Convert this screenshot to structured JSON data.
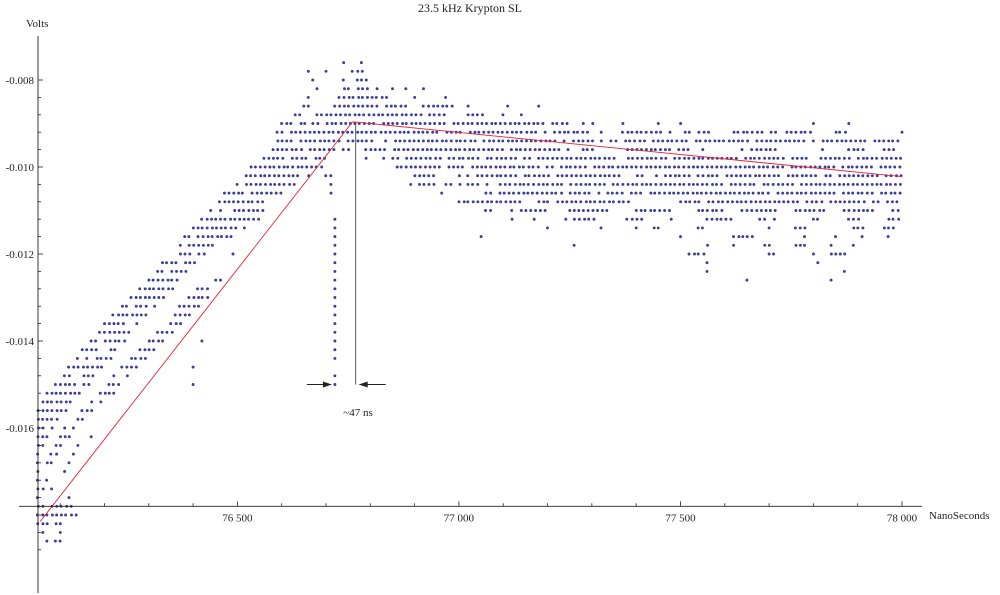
{
  "chart_data": {
    "type": "scatter",
    "title": "23.5 kHz Krypton SL",
    "xlabel": "NanoSeconds",
    "ylabel": "Volts",
    "xlim": [
      76050,
      78060
    ],
    "ylim": [
      -0.0189,
      -0.0076
    ],
    "x_axis_at_y": -0.0178,
    "y_axis_at_x": 76050,
    "x_ticks": [
      76500,
      77000,
      77500,
      78000
    ],
    "x_tick_labels": [
      "76 500",
      "77 000",
      "77 500",
      "78 000"
    ],
    "y_ticks": [
      -0.008,
      -0.01,
      -0.012,
      -0.014,
      -0.016
    ],
    "y_tick_labels": [
      "-0.008",
      "-0.010",
      "-0.012",
      "-0.014",
      "-0.016"
    ],
    "grid": false,
    "marker_color": "#3a3d98",
    "fit_color": "#e8202e",
    "level_step": 0.0002,
    "point_bands": [
      {
        "y": -0.0076,
        "segments": [
          [
            76740,
            76740
          ],
          [
            76780,
            76780
          ]
        ]
      },
      {
        "y": -0.0078,
        "segments": [
          [
            76660,
            76660
          ],
          [
            76700,
            76700
          ],
          [
            76760,
            76790
          ]
        ]
      },
      {
        "y": -0.008,
        "segments": [
          [
            76670,
            76670
          ],
          [
            76740,
            76750
          ],
          [
            76770,
            76800
          ]
        ]
      },
      {
        "y": -0.0082,
        "segments": [
          [
            76680,
            76690
          ],
          [
            76730,
            76820
          ],
          [
            76850,
            76850
          ],
          [
            76880,
            76880
          ],
          [
            76920,
            76920
          ]
        ]
      },
      {
        "y": -0.0084,
        "segments": [
          [
            76660,
            76660
          ],
          [
            76700,
            76710
          ],
          [
            76730,
            76840
          ],
          [
            76900,
            76910
          ],
          [
            76970,
            76970
          ]
        ]
      },
      {
        "y": -0.0086,
        "segments": [
          [
            76650,
            76690
          ],
          [
            76720,
            76870
          ],
          [
            76880,
            76890
          ],
          [
            76910,
            76990
          ],
          [
            77020,
            77030
          ],
          [
            77110,
            77110
          ],
          [
            77180,
            77180
          ]
        ]
      },
      {
        "y": -0.0088,
        "segments": [
          [
            76630,
            76650
          ],
          [
            76680,
            76990
          ],
          [
            77020,
            77060
          ],
          [
            77100,
            77110
          ],
          [
            77140,
            77150
          ]
        ]
      },
      {
        "y": -0.009,
        "segments": [
          [
            76600,
            76660
          ],
          [
            76670,
            77250
          ],
          [
            77280,
            77310
          ],
          [
            77370,
            77370
          ],
          [
            77450,
            77450
          ],
          [
            77500,
            77510
          ],
          [
            77800,
            77800
          ],
          [
            77880,
            77880
          ]
        ]
      },
      {
        "y": -0.0092,
        "segments": [
          [
            76590,
            77300
          ],
          [
            77320,
            77330
          ],
          [
            77370,
            77480
          ],
          [
            77510,
            77570
          ],
          [
            77620,
            77720
          ],
          [
            77740,
            77800
          ],
          [
            77850,
            77880
          ],
          [
            78000,
            78000
          ]
        ]
      },
      {
        "y": -0.0094,
        "segments": [
          [
            76580,
            78000
          ]
        ]
      },
      {
        "y": -0.0096,
        "segments": [
          [
            76580,
            76720
          ],
          [
            76740,
            76760
          ],
          [
            76790,
            77250
          ],
          [
            77280,
            77310
          ],
          [
            77380,
            77520
          ],
          [
            77550,
            77560
          ],
          [
            77640,
            77720
          ],
          [
            77820,
            77830
          ],
          [
            77880,
            77920
          ],
          [
            77960,
            78000
          ]
        ]
      },
      {
        "y": -0.0098,
        "segments": [
          [
            76560,
            76700
          ],
          [
            76790,
            76800
          ],
          [
            76830,
            78000
          ]
        ]
      },
      {
        "y": -0.01,
        "segments": [
          [
            76530,
            76690
          ],
          [
            76860,
            78000
          ]
        ]
      },
      {
        "y": -0.0102,
        "segments": [
          [
            76520,
            76640
          ],
          [
            76660,
            76670
          ],
          [
            76700,
            76720
          ],
          [
            76900,
            76950
          ],
          [
            77000,
            78000
          ]
        ]
      },
      {
        "y": -0.0104,
        "segments": [
          [
            76500,
            76630
          ],
          [
            76710,
            76720
          ],
          [
            76890,
            76950
          ],
          [
            76970,
            77010
          ],
          [
            77020,
            78000
          ]
        ]
      },
      {
        "y": -0.0106,
        "segments": [
          [
            76470,
            76610
          ],
          [
            76700,
            76720
          ],
          [
            76960,
            76970
          ],
          [
            77050,
            77700
          ],
          [
            77720,
            78000
          ]
        ]
      },
      {
        "y": -0.0108,
        "segments": [
          [
            76460,
            76570
          ],
          [
            77000,
            77140
          ],
          [
            77180,
            77400
          ],
          [
            77500,
            78000
          ]
        ]
      },
      {
        "y": -0.011,
        "segments": [
          [
            76440,
            76560
          ],
          [
            77060,
            77080
          ],
          [
            77120,
            77200
          ],
          [
            77250,
            77340
          ],
          [
            77400,
            77480
          ],
          [
            77540,
            77600
          ],
          [
            77640,
            77720
          ],
          [
            77760,
            77830
          ],
          [
            77870,
            77940
          ],
          [
            77980,
            78000
          ]
        ]
      },
      {
        "y": -0.0112,
        "segments": [
          [
            76420,
            76550
          ],
          [
            76720,
            76720
          ],
          [
            77120,
            77120
          ],
          [
            77170,
            77170
          ],
          [
            77240,
            77310
          ],
          [
            77380,
            77420
          ],
          [
            77480,
            77490
          ],
          [
            77560,
            77620
          ],
          [
            77680,
            77720
          ],
          [
            77800,
            77830
          ],
          [
            77880,
            77910
          ],
          [
            77970,
            78000
          ]
        ]
      },
      {
        "y": -0.0114,
        "segments": [
          [
            76400,
            76520
          ],
          [
            76720,
            76720
          ],
          [
            77200,
            77200
          ],
          [
            77320,
            77340
          ],
          [
            77400,
            77400
          ],
          [
            77440,
            77460
          ],
          [
            77540,
            77560
          ],
          [
            77700,
            77700
          ],
          [
            77760,
            77790
          ],
          [
            77880,
            77930
          ],
          [
            77960,
            77990
          ]
        ]
      },
      {
        "y": -0.0116,
        "segments": [
          [
            76380,
            76490
          ],
          [
            76720,
            76720
          ],
          [
            77050,
            77050
          ],
          [
            77500,
            77500
          ],
          [
            77620,
            77670
          ],
          [
            77780,
            77780
          ],
          [
            77850,
            77850
          ],
          [
            77910,
            77910
          ],
          [
            77970,
            77980
          ]
        ]
      },
      {
        "y": -0.0118,
        "segments": [
          [
            76370,
            76460
          ],
          [
            76720,
            76720
          ],
          [
            77260,
            77260
          ],
          [
            77560,
            77570
          ],
          [
            77620,
            77620
          ],
          [
            77690,
            77710
          ],
          [
            77760,
            77790
          ],
          [
            77840,
            77840
          ],
          [
            77890,
            77890
          ]
        ]
      },
      {
        "y": -0.012,
        "segments": [
          [
            76350,
            76430
          ],
          [
            76490,
            76490
          ],
          [
            76720,
            76720
          ],
          [
            77520,
            77560
          ],
          [
            77700,
            77720
          ],
          [
            77800,
            77800
          ],
          [
            77840,
            77880
          ]
        ]
      },
      {
        "y": -0.0122,
        "segments": [
          [
            76330,
            76410
          ],
          [
            76720,
            76720
          ],
          [
            77560,
            77560
          ],
          [
            77810,
            77810
          ]
        ]
      },
      {
        "y": -0.0124,
        "segments": [
          [
            76320,
            76390
          ],
          [
            76720,
            76720
          ],
          [
            77560,
            77560
          ],
          [
            77870,
            77870
          ]
        ]
      },
      {
        "y": -0.0126,
        "segments": [
          [
            76300,
            76370
          ],
          [
            76440,
            76470
          ],
          [
            76720,
            76720
          ],
          [
            77650,
            77650
          ],
          [
            77840,
            77840
          ]
        ]
      },
      {
        "y": -0.0128,
        "segments": [
          [
            76280,
            76360
          ],
          [
            76410,
            76440
          ],
          [
            76720,
            76720
          ]
        ]
      },
      {
        "y": -0.013,
        "segments": [
          [
            76260,
            76340
          ],
          [
            76390,
            76440
          ],
          [
            76720,
            76720
          ]
        ]
      },
      {
        "y": -0.0132,
        "segments": [
          [
            76240,
            76320
          ],
          [
            76370,
            76420
          ],
          [
            76720,
            76720
          ]
        ]
      },
      {
        "y": -0.0134,
        "segments": [
          [
            76220,
            76300
          ],
          [
            76360,
            76400
          ],
          [
            76720,
            76720
          ]
        ]
      },
      {
        "y": -0.0136,
        "segments": [
          [
            76200,
            76280
          ],
          [
            76350,
            76380
          ],
          [
            76720,
            76720
          ]
        ]
      },
      {
        "y": -0.0138,
        "segments": [
          [
            76190,
            76260
          ],
          [
            76320,
            76360
          ],
          [
            76720,
            76720
          ]
        ]
      },
      {
        "y": -0.014,
        "segments": [
          [
            76170,
            76250
          ],
          [
            76300,
            76340
          ],
          [
            76420,
            76420
          ],
          [
            76720,
            76720
          ]
        ]
      },
      {
        "y": -0.0142,
        "segments": [
          [
            76150,
            76230
          ],
          [
            76280,
            76320
          ],
          [
            76720,
            76720
          ]
        ]
      },
      {
        "y": -0.0144,
        "segments": [
          [
            76140,
            76220
          ],
          [
            76260,
            76300
          ],
          [
            76720,
            76720
          ]
        ]
      },
      {
        "y": -0.0146,
        "segments": [
          [
            76120,
            76200
          ],
          [
            76240,
            76280
          ],
          [
            76400,
            76400
          ]
        ]
      },
      {
        "y": -0.0148,
        "segments": [
          [
            76100,
            76180
          ],
          [
            76220,
            76260
          ],
          [
            76720,
            76720
          ]
        ]
      },
      {
        "y": -0.015,
        "segments": [
          [
            76090,
            76170
          ],
          [
            76210,
            76240
          ],
          [
            76400,
            76400
          ],
          [
            76720,
            76720
          ]
        ]
      },
      {
        "y": -0.0152,
        "segments": [
          [
            76070,
            76150
          ],
          [
            76190,
            76230
          ]
        ]
      },
      {
        "y": -0.0154,
        "segments": [
          [
            76060,
            76140
          ],
          [
            76170,
            76200
          ]
        ]
      },
      {
        "y": -0.0156,
        "segments": [
          [
            76050,
            76120
          ],
          [
            76150,
            76180
          ]
        ]
      },
      {
        "y": -0.0158,
        "segments": [
          [
            76050,
            76100
          ],
          [
            76130,
            76160
          ]
        ]
      },
      {
        "y": -0.016,
        "segments": [
          [
            76050,
            76090
          ],
          [
            76110,
            76140
          ]
        ]
      },
      {
        "y": -0.0162,
        "segments": [
          [
            76050,
            76080
          ],
          [
            76100,
            76130
          ],
          [
            76170,
            76170
          ]
        ]
      },
      {
        "y": -0.0164,
        "segments": [
          [
            76050,
            76070
          ],
          [
            76090,
            76110
          ],
          [
            76140,
            76140
          ]
        ]
      },
      {
        "y": -0.0166,
        "segments": [
          [
            76050,
            76060
          ],
          [
            76080,
            76100
          ],
          [
            76130,
            76130
          ]
        ]
      },
      {
        "y": -0.0168,
        "segments": [
          [
            76050,
            76060
          ],
          [
            76070,
            76090
          ],
          [
            76120,
            76120
          ]
        ]
      },
      {
        "y": -0.017,
        "segments": [
          [
            76050,
            76060
          ],
          [
            76070,
            76080
          ],
          [
            76110,
            76110
          ]
        ]
      },
      {
        "y": -0.0172,
        "segments": [
          [
            76050,
            76060
          ],
          [
            76070,
            76080
          ]
        ]
      },
      {
        "y": -0.0174,
        "segments": [
          [
            76050,
            76070
          ],
          [
            76080,
            76090
          ]
        ]
      },
      {
        "y": -0.0176,
        "segments": [
          [
            76050,
            76060
          ],
          [
            76080,
            76090
          ],
          [
            76120,
            76120
          ]
        ]
      },
      {
        "y": -0.0178,
        "segments": [
          [
            76050,
            76130
          ]
        ]
      },
      {
        "y": -0.018,
        "segments": [
          [
            76050,
            76140
          ]
        ]
      },
      {
        "y": -0.0182,
        "segments": [
          [
            76050,
            76080
          ],
          [
            76090,
            76120
          ]
        ]
      },
      {
        "y": -0.0184,
        "segments": [
          [
            76050,
            76070
          ],
          [
            76100,
            76110
          ]
        ]
      },
      {
        "y": -0.0186,
        "segments": [
          [
            76070,
            76070
          ],
          [
            76090,
            76110
          ]
        ]
      }
    ],
    "fit_lines": [
      {
        "x": [
          76055,
          76760
        ],
        "y": [
          -0.01815,
          -0.00896
        ]
      },
      {
        "x": [
          76760,
          78000
        ],
        "y": [
          -0.00896,
          -0.01022
        ]
      }
    ],
    "annotation": {
      "label": "~47 ns",
      "left_x": 76720,
      "right_x": 76767,
      "y_at": -0.015,
      "marker_top": -0.009
    }
  }
}
